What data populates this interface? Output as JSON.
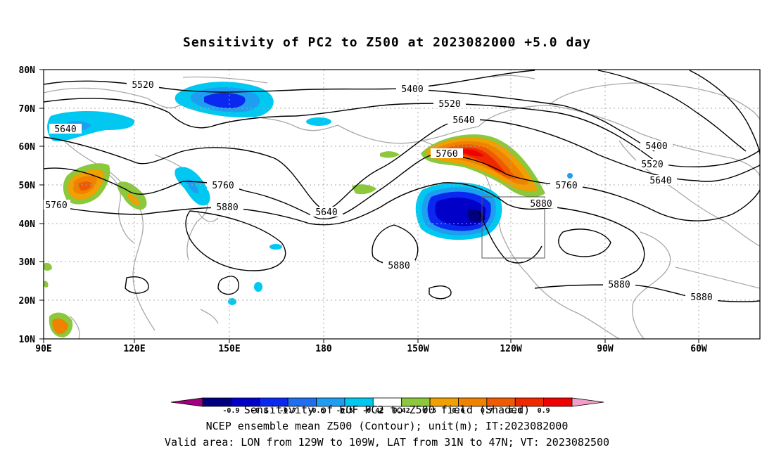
{
  "title": "Sensitivity of PC2 to Z500 at 2023082000 +5.0 day",
  "lat_labels": [
    "80N",
    "70N",
    "60N",
    "50N",
    "40N",
    "30N",
    "20N",
    "10N"
  ],
  "lon_labels": [
    "90E",
    "120E",
    "150E",
    "180",
    "150W",
    "120W",
    "90W",
    "60W"
  ],
  "contour_labels": [
    "5520",
    "5400",
    "5520",
    "5640",
    "5760",
    "5880",
    "5640",
    "5760",
    "5880",
    "5400",
    "5520",
    "5640",
    "5760",
    "5880",
    "5880",
    "5640",
    "5760",
    "5880",
    "5880"
  ],
  "colorbar": {
    "colors": [
      "#a0007e",
      "#00007e",
      "#0000c8",
      "#0a28f0",
      "#1e6ef0",
      "#1e9ef0",
      "#00c8f0",
      "#ffffff",
      "#8cc83c",
      "#f0a000",
      "#f08200",
      "#f05a00",
      "#f02800",
      "#f00000",
      "#f0a0c8"
    ],
    "labels": [
      "-0.9",
      "-0.8",
      "-0.7",
      "-0.6",
      "-0.5",
      "-0.42",
      "0.42",
      "0.5",
      "0.6",
      "0.7",
      "0.8",
      "0.9"
    ]
  },
  "footer": {
    "line1": "Sensitivity of EOF PC2 to Z500 field (Shaded)",
    "line2": "NCEP ensemble mean Z500 (Contour); unit(m); IT:2023082000",
    "line3": "Valid area: LON from 129W to 109W, LAT from 31N to 47N; VT: 2023082500"
  },
  "valid_area": {
    "lon": [
      "129W",
      "109W"
    ],
    "lat": [
      "31N",
      "47N"
    ]
  }
}
